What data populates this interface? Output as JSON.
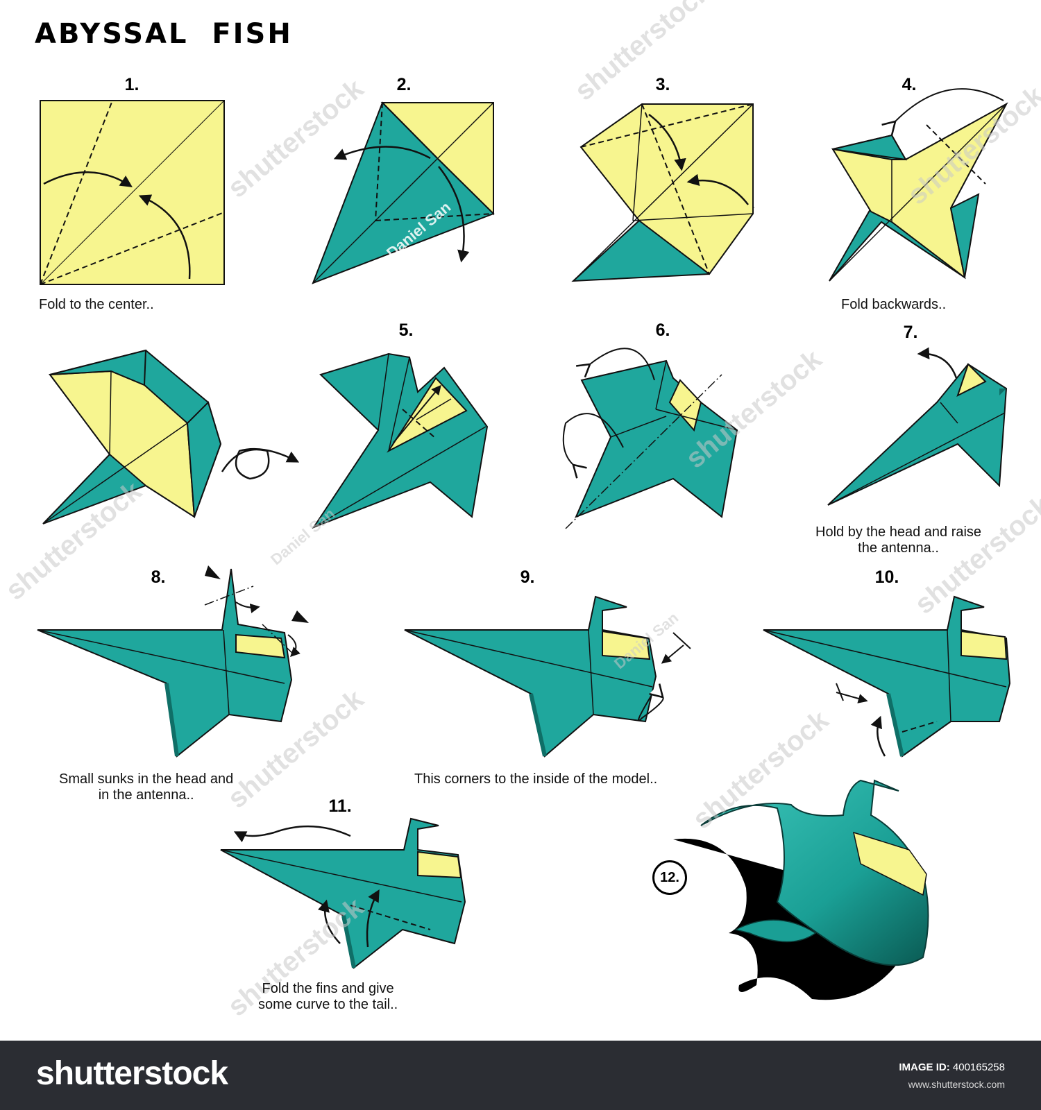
{
  "title": "ABYSSAL  FISH",
  "colors": {
    "teal": "#1fa79d",
    "teal_dark": "#0f6f67",
    "yellow": "#f7f58f",
    "outline": "#111111",
    "footer_bg": "#2b2d33"
  },
  "steps": [
    {
      "number": "1.",
      "caption": [
        "Fold to the center.."
      ]
    },
    {
      "number": "2.",
      "caption": []
    },
    {
      "number": "3.",
      "caption": []
    },
    {
      "number": "4.",
      "caption": [
        "Fold backwards.."
      ]
    },
    {
      "number": "",
      "caption": []
    },
    {
      "number": "5.",
      "caption": []
    },
    {
      "number": "6.",
      "caption": []
    },
    {
      "number": "7.",
      "caption": [
        "Hold by the head and raise",
        "the antenna.."
      ]
    },
    {
      "number": "8.",
      "caption": [
        "Small sunks in the head and",
        "in the antenna.."
      ]
    },
    {
      "number": "9.",
      "caption": [
        "This corners to the inside of the model.."
      ]
    },
    {
      "number": "10.",
      "caption": []
    },
    {
      "number": "11.",
      "caption": [
        "Fold the fins and give",
        "some curve to the tail.."
      ]
    },
    {
      "number": "12.",
      "caption": []
    }
  ],
  "watermarks": {
    "author": "Daniel San",
    "stock": "shutterstock"
  },
  "footer": {
    "brand": "shutterstock",
    "image_id_label": "IMAGE ID:",
    "image_id": "400165258",
    "site": "www.shutterstock.com"
  }
}
